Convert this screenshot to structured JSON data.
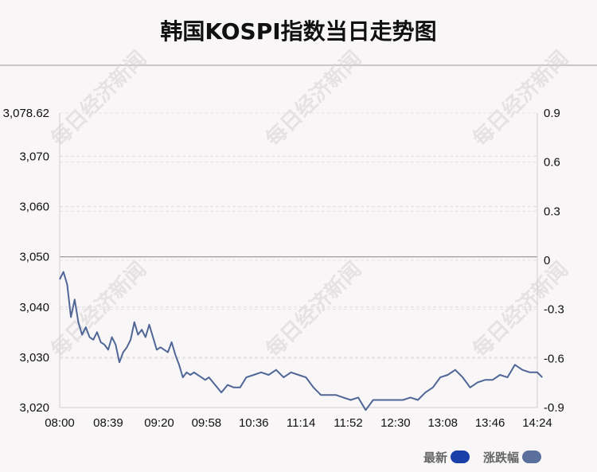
{
  "title": "韩国KOSPI指数当日走势图",
  "watermark": "每日经济新闻",
  "legend": {
    "latest_label": "最新",
    "latest_color": "#1a3fa8",
    "change_label": "涨跌幅",
    "change_color": "#5b6f9c"
  },
  "chart_data": {
    "type": "line",
    "title": "韩国KOSPI指数当日走势图",
    "x_ticks": [
      "08:00",
      "08:39",
      "09:20",
      "09:58",
      "10:36",
      "11:14",
      "11:52",
      "12:30",
      "13:08",
      "13:46",
      "14:24"
    ],
    "y_left_ticks": [
      "3,078.62",
      "3,070",
      "3,060",
      "3,050",
      "3,040",
      "3,030",
      "3,020"
    ],
    "y_left_range": [
      3020,
      3078.62
    ],
    "y_right_ticks": [
      "0.9",
      "0.6",
      "0.3",
      "0",
      "-0.3",
      "-0.6",
      "-0.9"
    ],
    "y_right_range": [
      -0.9,
      0.9
    ],
    "reference_value": 3050,
    "grid": true,
    "line_color": "#4f6696",
    "series": [
      {
        "name": "最新",
        "x": [
          "08:00",
          "08:03",
          "08:06",
          "08:09",
          "08:12",
          "08:15",
          "08:18",
          "08:21",
          "08:24",
          "08:27",
          "08:30",
          "08:33",
          "08:36",
          "08:39",
          "08:42",
          "08:45",
          "08:48",
          "08:51",
          "08:54",
          "08:57",
          "09:00",
          "09:03",
          "09:06",
          "09:09",
          "09:12",
          "09:15",
          "09:18",
          "09:21",
          "09:24",
          "09:27",
          "09:30",
          "09:33",
          "09:36",
          "09:39",
          "09:42",
          "09:45",
          "09:48",
          "09:51",
          "09:54",
          "09:57",
          "10:00",
          "10:05",
          "10:10",
          "10:15",
          "10:20",
          "10:25",
          "10:30",
          "10:36",
          "10:42",
          "10:48",
          "10:54",
          "11:00",
          "11:06",
          "11:12",
          "11:18",
          "11:24",
          "11:30",
          "11:36",
          "11:42",
          "11:48",
          "11:54",
          "12:00",
          "12:06",
          "12:12",
          "12:18",
          "12:24",
          "12:30",
          "12:36",
          "12:42",
          "12:48",
          "12:54",
          "13:00",
          "13:06",
          "13:12",
          "13:18",
          "13:24",
          "13:30",
          "13:36",
          "13:42",
          "13:48",
          "13:54",
          "14:00",
          "14:06",
          "14:12",
          "14:18",
          "14:24",
          "14:28"
        ],
        "values": [
          3045.5,
          3047,
          3044.5,
          3038,
          3041.5,
          3037,
          3034.5,
          3036,
          3034,
          3033.5,
          3035,
          3033,
          3032.5,
          3031.5,
          3034,
          3032.5,
          3029,
          3031,
          3032,
          3033.5,
          3037,
          3034.5,
          3035.5,
          3034,
          3036.5,
          3034,
          3031.5,
          3032,
          3031.5,
          3031,
          3033,
          3030.5,
          3028.5,
          3026,
          3027,
          3026.5,
          3027,
          3026.5,
          3026,
          3025.5,
          3026,
          3024.5,
          3023,
          3024.5,
          3024,
          3024,
          3026,
          3026.5,
          3027,
          3026.5,
          3027.5,
          3026,
          3027,
          3026.5,
          3026,
          3024,
          3022.5,
          3022.5,
          3022.5,
          3022,
          3021.5,
          3022,
          3019.5,
          3021.5,
          3021.5,
          3021.5,
          3021.5,
          3021.5,
          3022,
          3021.5,
          3023,
          3024,
          3026,
          3026.5,
          3027.5,
          3026,
          3024,
          3025,
          3025.5,
          3025.5,
          3026.5,
          3026,
          3028.5,
          3027.5,
          3027,
          3027,
          3026
        ]
      }
    ]
  }
}
